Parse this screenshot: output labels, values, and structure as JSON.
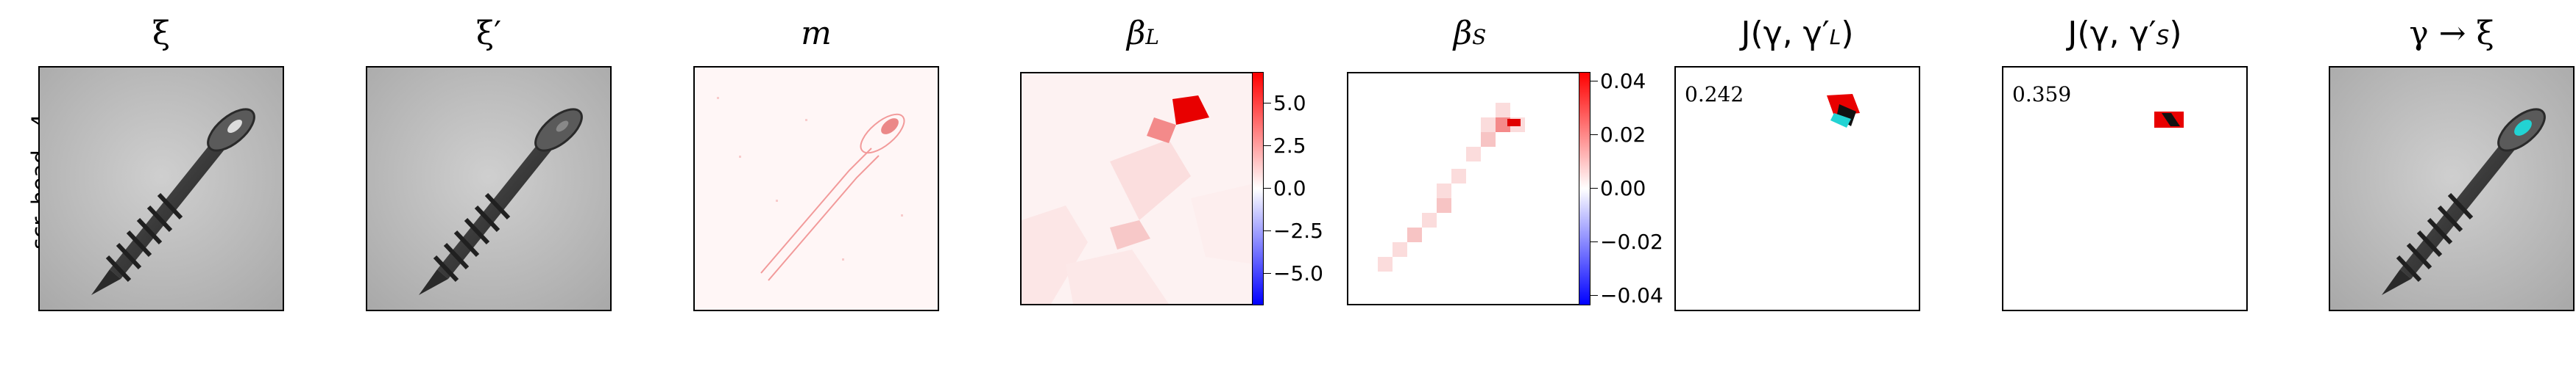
{
  "row_label": "scr. head - 4",
  "panels": [
    {
      "title": "ξ"
    },
    {
      "title": "ξ′"
    },
    {
      "title": "m"
    },
    {
      "title": "β",
      "title_sub": "L"
    },
    {
      "title": "β",
      "title_sub": "S"
    },
    {
      "title": "J(γ, γ′",
      "title_sub": "L",
      "title_end": ")"
    },
    {
      "title": "J(γ, γ′",
      "title_sub": "S",
      "title_end": ")"
    },
    {
      "title": "γ → ξ"
    }
  ],
  "scores": {
    "jl": "0.242",
    "js": "0.359"
  },
  "colorbar_L": {
    "ticks": [
      "5.0",
      "2.5",
      "0.0",
      "−2.5",
      "−5.0"
    ]
  },
  "colorbar_S": {
    "ticks": [
      "0.04",
      "0.02",
      "0.00",
      "−0.02",
      "−0.04"
    ]
  },
  "colors": {
    "positive": "#ff0000",
    "negative": "#0000ff",
    "highlight": "#22d3d3"
  }
}
